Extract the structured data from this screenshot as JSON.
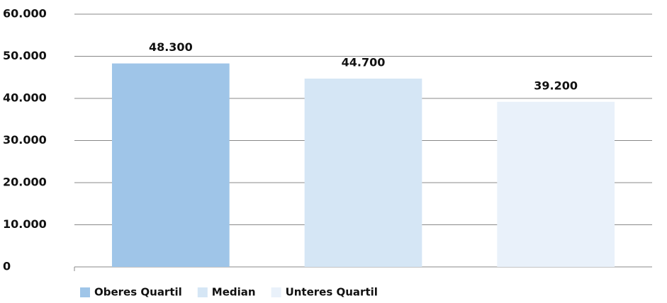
{
  "chart_data": {
    "type": "bar",
    "categories": [
      "Oberes Quartil",
      "Median",
      "Unteres Quartil"
    ],
    "values": [
      48300,
      44700,
      39200
    ],
    "value_labels": [
      "48.300",
      "44.700",
      "39.200"
    ],
    "colors": [
      "#9fc5e8",
      "#d5e6f5",
      "#e9f1fa"
    ],
    "ylim": [
      0,
      60000
    ],
    "yticks": [
      0,
      {
        "value": 10000,
        "label": "10.000"
      },
      {
        "value": 20000,
        "label": "20.000"
      },
      {
        "value": 30000,
        "label": "30.000"
      },
      {
        "value": 40000,
        "label": "40.000"
      },
      {
        "value": 50000,
        "label": "50.000"
      },
      {
        "value": 60000,
        "label": "60.000"
      }
    ],
    "grid": true,
    "legend": "bottom-left"
  }
}
